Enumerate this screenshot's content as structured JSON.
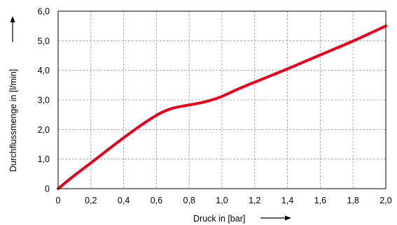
{
  "chart_data": {
    "type": "line",
    "xlabel": "Druck in [bar]",
    "ylabel": "Durchflussmenge in [l/min]",
    "xlim": [
      0,
      2.0
    ],
    "ylim": [
      0,
      6.0
    ],
    "x_ticks": [
      "0",
      "0,2",
      "0,4",
      "0,6",
      "0,8",
      "1,0",
      "1,2",
      "1,4",
      "1,6",
      "1,8",
      "2,0"
    ],
    "y_ticks": [
      "0",
      "1,0",
      "2,0",
      "3,0",
      "4,0",
      "5,0",
      "6,0"
    ],
    "grid": true,
    "series": [
      {
        "color": "#e2001a",
        "x": [
          0,
          0.1,
          0.2,
          0.3,
          0.4,
          0.5,
          0.6,
          0.65,
          0.7,
          0.75,
          0.8,
          0.85,
          0.9,
          0.95,
          1.0,
          1.1,
          1.2,
          1.4,
          1.6,
          1.8,
          2.0
        ],
        "y": [
          0,
          0.45,
          0.87,
          1.3,
          1.72,
          2.12,
          2.48,
          2.62,
          2.72,
          2.78,
          2.83,
          2.88,
          2.94,
          3.02,
          3.12,
          3.37,
          3.6,
          4.05,
          4.52,
          4.99,
          5.5
        ]
      }
    ]
  }
}
